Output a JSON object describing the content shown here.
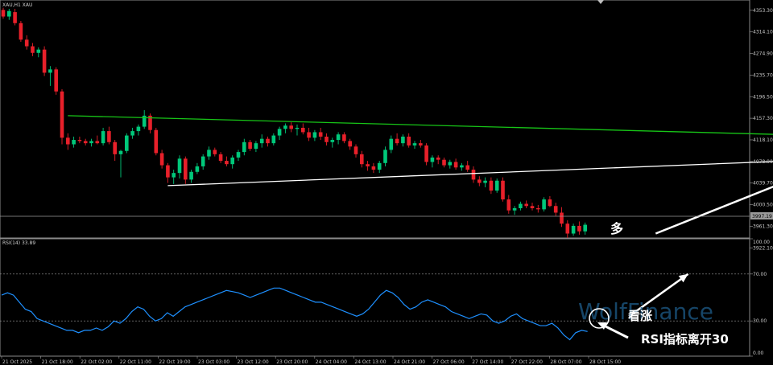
{
  "window": {
    "symbol_label": "XAU,H1  XAU",
    "subwindow_label": "RSI(14) 33.89",
    "current_price_tag": "3997.19"
  },
  "watermark": "WolfFinance",
  "annotations": {
    "bull_cn": "多",
    "rsi_bullish": "看涨",
    "rsi_leaves_30": "RSI指标离开30"
  },
  "colors": {
    "background": "#000000",
    "bull_candle": "#00c87a",
    "bear_candle": "#e8202a",
    "resistance_line": "#17c517",
    "support_line": "#ffffff",
    "rsi_line": "#1e90ff",
    "grid": "#9a9a9a"
  },
  "chart_data": [
    {
      "type": "candlestick",
      "symbol": "XAU,H1",
      "ylim": [
        3940,
        4372
      ],
      "y_ticks": [
        "4353.30",
        "4314.10",
        "4274.90",
        "4235.70",
        "4196.50",
        "4157.30",
        "4118.10",
        "4078.90",
        "4039.70",
        "4000.50",
        "3961.30",
        "3922.10"
      ],
      "x_ticks": [
        "21 Oct 2025",
        "21 Oct 18:00",
        "22 Oct 02:00",
        "22 Oct 11:00",
        "22 Oct 19:00",
        "23 Oct 03:00",
        "23 Oct 12:00",
        "23 Oct 20:00",
        "24 Oct 04:00",
        "24 Oct 13:00",
        "24 Oct 21:00",
        "27 Oct 06:00",
        "27 Oct 14:00",
        "27 Oct 22:00",
        "28 Oct 07:00",
        "28 Oct 15:00"
      ],
      "ohlc": [
        [
          4354,
          4358,
          4338,
          4342
        ],
        [
          4342,
          4356,
          4336,
          4352
        ],
        [
          4350,
          4356,
          4326,
          4330
        ],
        [
          4330,
          4334,
          4296,
          4300
        ],
        [
          4300,
          4308,
          4282,
          4288
        ],
        [
          4288,
          4294,
          4270,
          4276
        ],
        [
          4276,
          4286,
          4268,
          4282
        ],
        [
          4282,
          4288,
          4234,
          4240
        ],
        [
          4240,
          4252,
          4216,
          4246
        ],
        [
          4246,
          4250,
          4200,
          4206
        ],
        [
          4206,
          4210,
          4110,
          4122
        ],
        [
          4122,
          4130,
          4100,
          4110
        ],
        [
          4110,
          4124,
          4104,
          4118
        ],
        [
          4118,
          4124,
          4112,
          4116
        ],
        [
          4116,
          4120,
          4108,
          4112
        ],
        [
          4112,
          4120,
          4106,
          4116
        ],
        [
          4116,
          4126,
          4110,
          4112
        ],
        [
          4112,
          4140,
          4108,
          4134
        ],
        [
          4134,
          4142,
          4110,
          4114
        ],
        [
          4114,
          4118,
          4080,
          4092
        ],
        [
          4092,
          4100,
          4050,
          4098
        ],
        [
          4098,
          4130,
          4094,
          4126
        ],
        [
          4126,
          4140,
          4120,
          4134
        ],
        [
          4134,
          4146,
          4126,
          4142
        ],
        [
          4142,
          4172,
          4138,
          4162
        ],
        [
          4162,
          4166,
          4130,
          4136
        ],
        [
          4136,
          4140,
          4090,
          4094
        ],
        [
          4094,
          4100,
          4066,
          4072
        ],
        [
          4072,
          4076,
          4040,
          4050
        ],
        [
          4050,
          4064,
          4038,
          4058
        ],
        [
          4058,
          4090,
          4048,
          4084
        ],
        [
          4084,
          4088,
          4038,
          4046
        ],
        [
          4046,
          4064,
          4040,
          4060
        ],
        [
          4060,
          4076,
          4056,
          4070
        ],
        [
          4070,
          4092,
          4064,
          4088
        ],
        [
          4088,
          4106,
          4082,
          4100
        ],
        [
          4100,
          4104,
          4088,
          4092
        ],
        [
          4092,
          4096,
          4076,
          4080
        ],
        [
          4080,
          4088,
          4070,
          4074
        ],
        [
          4074,
          4090,
          4066,
          4086
        ],
        [
          4086,
          4100,
          4080,
          4096
        ],
        [
          4096,
          4120,
          4090,
          4114
        ],
        [
          4114,
          4118,
          4098,
          4102
        ],
        [
          4102,
          4116,
          4096,
          4112
        ],
        [
          4112,
          4128,
          4104,
          4120
        ],
        [
          4120,
          4124,
          4106,
          4112
        ],
        [
          4112,
          4130,
          4108,
          4126
        ],
        [
          4126,
          4142,
          4118,
          4138
        ],
        [
          4138,
          4148,
          4130,
          4144
        ],
        [
          4144,
          4150,
          4132,
          4138
        ],
        [
          4138,
          4146,
          4126,
          4140
        ],
        [
          4140,
          4148,
          4128,
          4132
        ],
        [
          4132,
          4140,
          4116,
          4122
        ],
        [
          4122,
          4136,
          4116,
          4132
        ],
        [
          4132,
          4140,
          4118,
          4124
        ],
        [
          4124,
          4130,
          4108,
          4114
        ],
        [
          4114,
          4122,
          4104,
          4118
        ],
        [
          4118,
          4132,
          4110,
          4128
        ],
        [
          4128,
          4132,
          4112,
          4116
        ],
        [
          4116,
          4120,
          4100,
          4106
        ],
        [
          4106,
          4110,
          4086,
          4092
        ],
        [
          4092,
          4098,
          4068,
          4074
        ],
        [
          4074,
          4080,
          4062,
          4070
        ],
        [
          4070,
          4076,
          4058,
          4064
        ],
        [
          4064,
          4080,
          4058,
          4076
        ],
        [
          4076,
          4106,
          4070,
          4100
        ],
        [
          4100,
          4126,
          4094,
          4120
        ],
        [
          4120,
          4130,
          4108,
          4112
        ],
        [
          4112,
          4128,
          4106,
          4124
        ],
        [
          4124,
          4130,
          4104,
          4108
        ],
        [
          4108,
          4116,
          4102,
          4112
        ],
        [
          4112,
          4118,
          4104,
          4108
        ],
        [
          4108,
          4112,
          4072,
          4078
        ],
        [
          4078,
          4090,
          4068,
          4086
        ],
        [
          4086,
          4090,
          4074,
          4082
        ],
        [
          4082,
          4086,
          4068,
          4072
        ],
        [
          4072,
          4082,
          4066,
          4078
        ],
        [
          4078,
          4084,
          4064,
          4068
        ],
        [
          4068,
          4076,
          4062,
          4072
        ],
        [
          4072,
          4080,
          4060,
          4064
        ],
        [
          4064,
          4070,
          4040,
          4046
        ],
        [
          4046,
          4052,
          4034,
          4040
        ],
        [
          4040,
          4050,
          4032,
          4044
        ],
        [
          4044,
          4050,
          4020,
          4026
        ],
        [
          4026,
          4048,
          4022,
          4044
        ],
        [
          4044,
          4050,
          4006,
          4010
        ],
        [
          4010,
          4018,
          3984,
          3990
        ],
        [
          3990,
          3998,
          3982,
          3994
        ],
        [
          3994,
          4006,
          3990,
          4002
        ],
        [
          4002,
          4008,
          3994,
          3998
        ],
        [
          3998,
          4004,
          3990,
          3994
        ],
        [
          3994,
          4000,
          3986,
          3992
        ],
        [
          3992,
          4014,
          3988,
          4010
        ],
        [
          4010,
          4016,
          3996,
          3998
        ],
        [
          3998,
          4004,
          3980,
          3986
        ],
        [
          3986,
          3996,
          3960,
          3966
        ],
        [
          3966,
          3972,
          3940,
          3948
        ],
        [
          3948,
          3966,
          3944,
          3962
        ],
        [
          3962,
          3970,
          3946,
          3952
        ],
        [
          3952,
          3968,
          3946,
          3964
        ]
      ],
      "lines": {
        "resistance": {
          "from": [
            11,
            4162
          ],
          "to": [
            153,
            4122
          ]
        },
        "support": {
          "from": [
            28,
            4035
          ],
          "to": [
            148,
            4086
          ]
        }
      },
      "projection": {
        "points": [
          [
            111,
            3948
          ],
          [
            142,
            4080
          ],
          [
            163,
            3946
          ]
        ]
      }
    },
    {
      "type": "line",
      "indicator": "RSI(14)",
      "ylim": [
        0,
        100
      ],
      "y_ticks": [
        "100.00",
        "70.00",
        "30.00",
        "0.00"
      ],
      "levels": [
        70,
        30
      ],
      "values": [
        52,
        54,
        52,
        46,
        40,
        38,
        32,
        30,
        28,
        26,
        24,
        22,
        22,
        20,
        22,
        22,
        24,
        22,
        25,
        30,
        28,
        32,
        38,
        42,
        40,
        34,
        30,
        32,
        37,
        34,
        38,
        42,
        44,
        46,
        48,
        50,
        52,
        54,
        56,
        55,
        54,
        52,
        50,
        52,
        54,
        56,
        58,
        58,
        56,
        54,
        52,
        50,
        48,
        46,
        46,
        44,
        42,
        40,
        38,
        36,
        34,
        36,
        40,
        46,
        52,
        56,
        54,
        50,
        44,
        40,
        42,
        46,
        48,
        46,
        44,
        42,
        38,
        36,
        34,
        32,
        34,
        36,
        35,
        30,
        28,
        30,
        34,
        36,
        32,
        30,
        28,
        26,
        26,
        28,
        24,
        18,
        14,
        20,
        22,
        21
      ],
      "projection": {
        "from": [
          106,
          33.89
        ],
        "to": [
          116,
          70
        ]
      }
    }
  ]
}
